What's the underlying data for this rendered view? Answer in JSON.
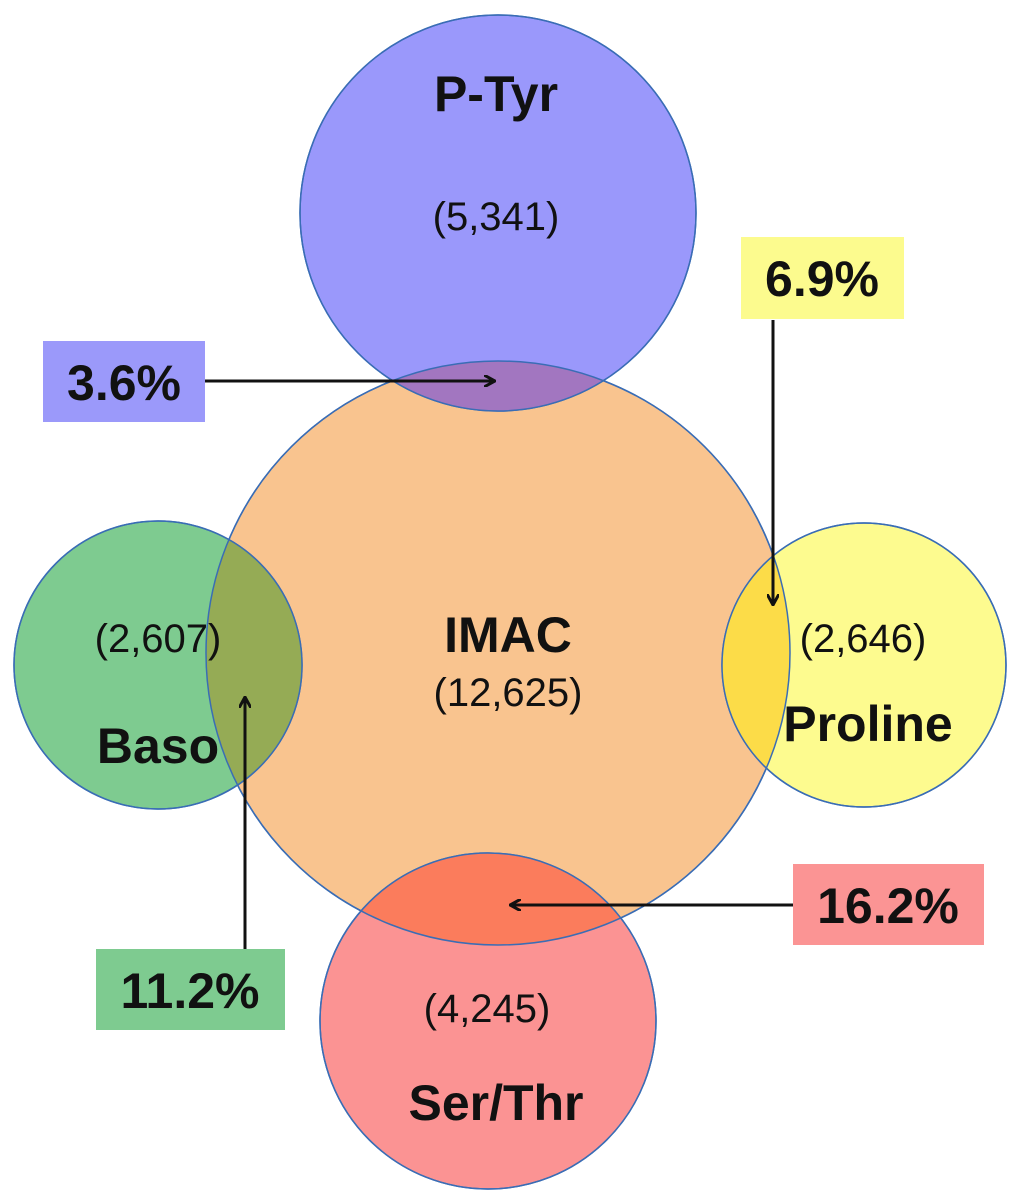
{
  "diagram": {
    "center": {
      "name": "IMAC",
      "count": "(12,625)",
      "color": "#f9c48f"
    },
    "sets": {
      "ptyr": {
        "name": "P-Tyr",
        "count": "(5,341)",
        "color": "#9a98fb"
      },
      "baso": {
        "name": "Baso",
        "count": "(2,607)",
        "color": "#7ecb90"
      },
      "proline": {
        "name": "Proline",
        "count": "(2,646)",
        "color": "#fdfb8f"
      },
      "serthr": {
        "name": "Ser/Thr",
        "count": "(4,245)",
        "color": "#fb9393"
      }
    },
    "overlaps": {
      "ptyr": {
        "percent": "3.6%",
        "box_color": "#9b99fa",
        "overlap_color": "#a276c0"
      },
      "proline": {
        "percent": "6.9%",
        "box_color": "#fcfb8e",
        "overlap_color": "#fcdc48"
      },
      "serthr": {
        "percent": "16.2%",
        "box_color": "#fb9494",
        "overlap_color": "#fb7c5c"
      },
      "baso": {
        "percent": "11.2%",
        "box_color": "#7ecb90",
        "overlap_color": "#95ab55"
      }
    }
  }
}
